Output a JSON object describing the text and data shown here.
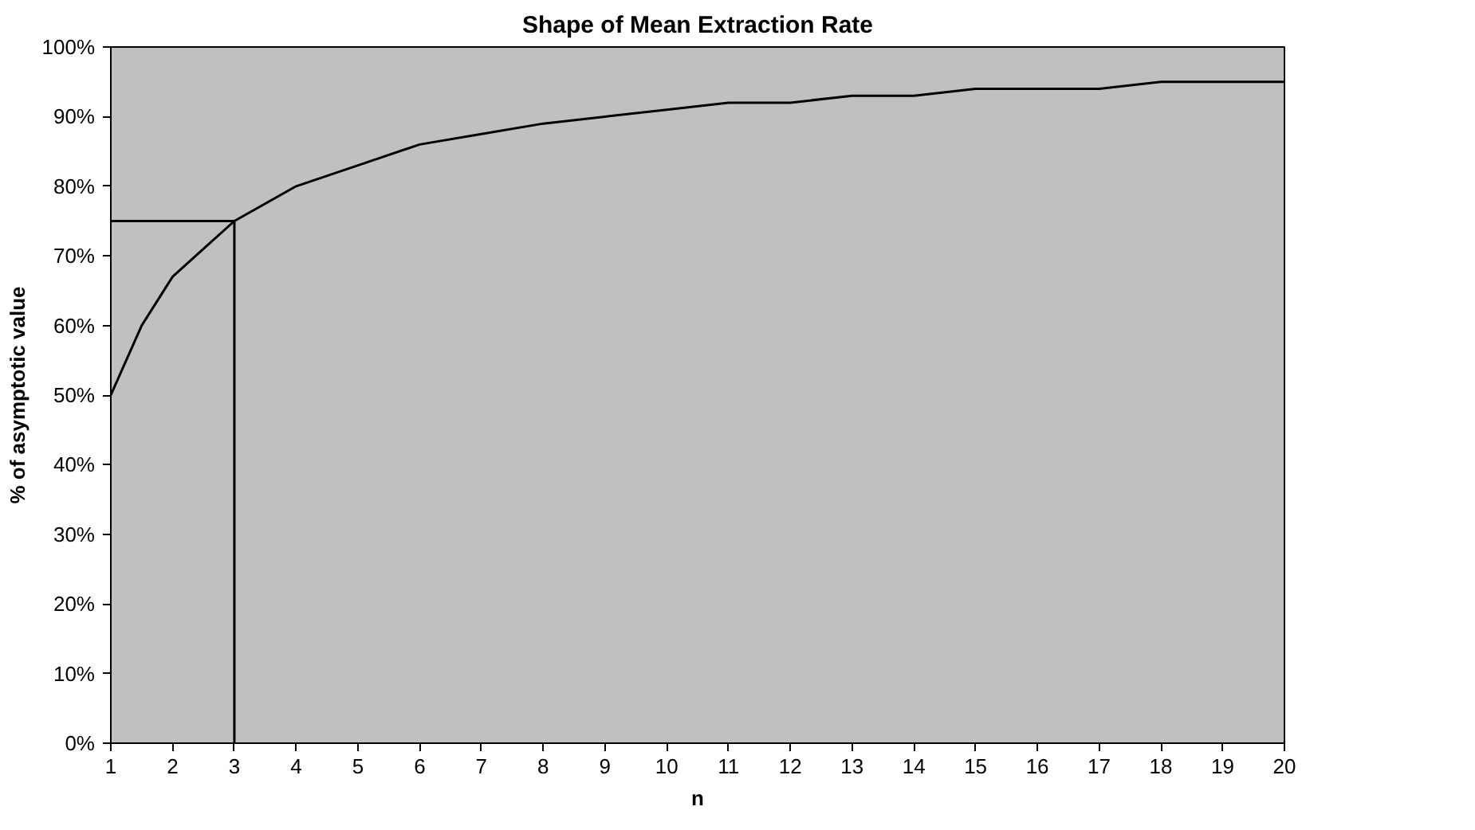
{
  "chart_data": {
    "type": "line",
    "title": "Shape of Mean Extraction Rate",
    "xlabel": "n",
    "ylabel": "% of asymptotic value",
    "x": [
      1,
      1.5,
      2,
      2.5,
      3,
      4,
      5,
      6,
      7,
      8,
      9,
      10,
      11,
      12,
      13,
      14,
      15,
      16,
      17,
      18,
      19,
      20
    ],
    "series": [
      {
        "color": "#000000",
        "values": [
          50,
          60,
          67,
          71,
          75,
          80,
          83,
          86,
          87.5,
          89,
          90,
          91,
          92,
          92,
          93,
          93,
          94,
          94,
          94,
          95,
          95,
          95
        ]
      }
    ],
    "xlim": [
      1,
      20
    ],
    "xticks": [
      1,
      2,
      3,
      4,
      5,
      6,
      7,
      8,
      9,
      10,
      11,
      12,
      13,
      14,
      15,
      16,
      17,
      18,
      19,
      20
    ],
    "ylim": [
      0,
      100
    ],
    "yticks": [
      {
        "value": 0,
        "label": "0%"
      },
      {
        "value": 10,
        "label": "10%"
      },
      {
        "value": 20,
        "label": "20%"
      },
      {
        "value": 30,
        "label": "30%"
      },
      {
        "value": 40,
        "label": "40%"
      },
      {
        "value": 50,
        "label": "50%"
      },
      {
        "value": 60,
        "label": "60%"
      },
      {
        "value": 70,
        "label": "70%"
      },
      {
        "value": 80,
        "label": "80%"
      },
      {
        "value": 90,
        "label": "90%"
      },
      {
        "value": 100,
        "label": "100%"
      }
    ],
    "ref_lines": [
      {
        "axis": "y",
        "value": 75,
        "color": "#000000"
      },
      {
        "axis": "x",
        "value": 3,
        "color": "#000000"
      }
    ],
    "grid": false,
    "marker": "none",
    "line_style": "solid"
  }
}
